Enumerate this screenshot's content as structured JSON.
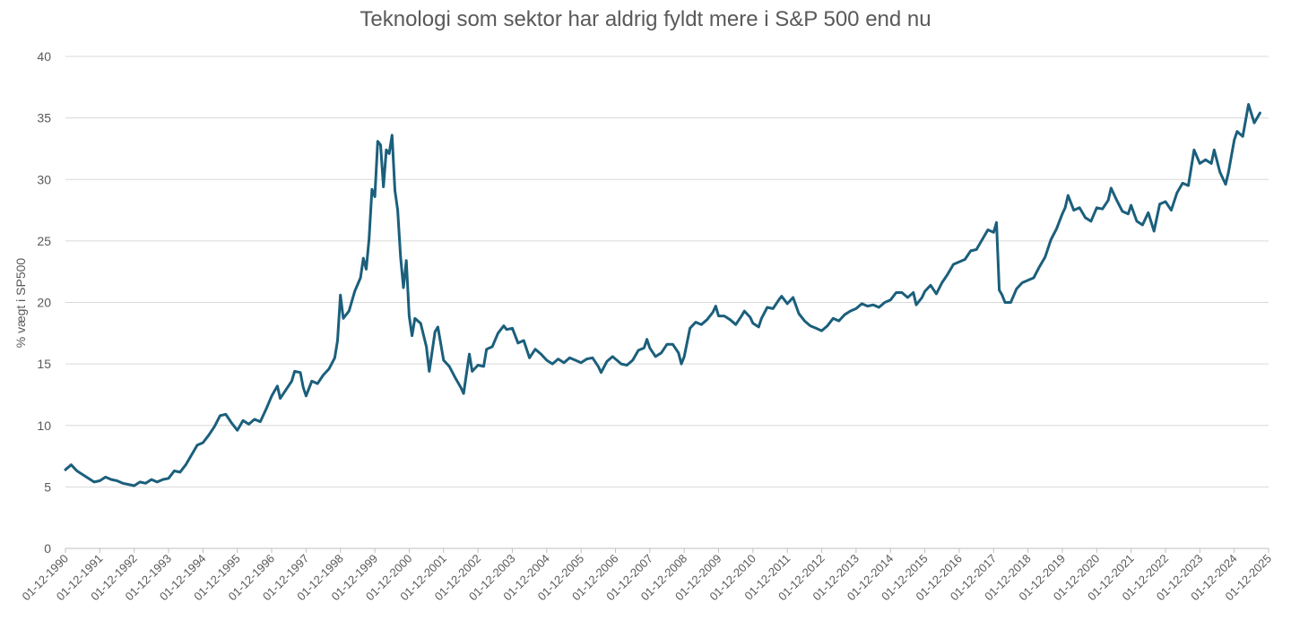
{
  "chart_data": {
    "type": "line",
    "title": "Teknologi som sektor har aldrig fyldt mere i S&P 500 end nu",
    "xlabel": "",
    "ylabel": "% vægt i SP500",
    "ylim": [
      0,
      40
    ],
    "yticks": [
      0,
      5,
      10,
      15,
      20,
      25,
      30,
      35,
      40
    ],
    "xlim": [
      "1990-12",
      "2025-12"
    ],
    "xtick_labels": [
      "01-12-1990",
      "01-12-1991",
      "01-12-1992",
      "01-12-1993",
      "01-12-1994",
      "01-12-1995",
      "01-12-1996",
      "01-12-1997",
      "01-12-1998",
      "01-12-1999",
      "01-12-2000",
      "01-12-2001",
      "01-12-2002",
      "01-12-2003",
      "01-12-2004",
      "01-12-2005",
      "01-12-2006",
      "01-12-2007",
      "01-12-2008",
      "01-12-2009",
      "01-12-2010",
      "01-12-2011",
      "01-12-2012",
      "01-12-2013",
      "01-12-2014",
      "01-12-2015",
      "01-12-2016",
      "01-12-2017",
      "01-12-2018",
      "01-12-2019",
      "01-12-2020",
      "01-12-2021",
      "01-12-2022",
      "01-12-2023",
      "01-12-2024",
      "01-12-2025"
    ],
    "grid": true,
    "legend": "none",
    "series": [
      {
        "color": "#1b5f7c",
        "points": [
          [
            "1990-12",
            6.4
          ],
          [
            "1991-02",
            6.8
          ],
          [
            "1991-04",
            6.3
          ],
          [
            "1991-06",
            6.0
          ],
          [
            "1991-08",
            5.7
          ],
          [
            "1991-10",
            5.4
          ],
          [
            "1991-12",
            5.5
          ],
          [
            "1992-02",
            5.8
          ],
          [
            "1992-04",
            5.6
          ],
          [
            "1992-06",
            5.5
          ],
          [
            "1992-08",
            5.3
          ],
          [
            "1992-10",
            5.2
          ],
          [
            "1992-12",
            5.1
          ],
          [
            "1993-02",
            5.4
          ],
          [
            "1993-04",
            5.3
          ],
          [
            "1993-06",
            5.6
          ],
          [
            "1993-08",
            5.4
          ],
          [
            "1993-10",
            5.6
          ],
          [
            "1993-12",
            5.7
          ],
          [
            "1994-02",
            6.3
          ],
          [
            "1994-04",
            6.2
          ],
          [
            "1994-06",
            6.8
          ],
          [
            "1994-08",
            7.6
          ],
          [
            "1994-10",
            8.4
          ],
          [
            "1994-12",
            8.6
          ],
          [
            "1995-02",
            9.2
          ],
          [
            "1995-04",
            9.9
          ],
          [
            "1995-06",
            10.8
          ],
          [
            "1995-08",
            10.9
          ],
          [
            "1995-10",
            10.2
          ],
          [
            "1995-12",
            9.6
          ],
          [
            "1996-02",
            10.4
          ],
          [
            "1996-04",
            10.1
          ],
          [
            "1996-06",
            10.5
          ],
          [
            "1996-08",
            10.3
          ],
          [
            "1996-10",
            11.3
          ],
          [
            "1996-12",
            12.4
          ],
          [
            "1997-02",
            13.2
          ],
          [
            "1997-03",
            12.2
          ],
          [
            "1997-05",
            12.9
          ],
          [
            "1997-07",
            13.6
          ],
          [
            "1997-08",
            14.4
          ],
          [
            "1997-10",
            14.3
          ],
          [
            "1997-11",
            13.1
          ],
          [
            "1997-12",
            12.4
          ],
          [
            "1998-02",
            13.6
          ],
          [
            "1998-04",
            13.4
          ],
          [
            "1998-06",
            14.1
          ],
          [
            "1998-08",
            14.6
          ],
          [
            "1998-10",
            15.5
          ],
          [
            "1998-11",
            16.9
          ],
          [
            "1998-12",
            20.6
          ],
          [
            "1999-01",
            18.7
          ],
          [
            "1999-03",
            19.3
          ],
          [
            "1999-05",
            20.9
          ],
          [
            "1999-07",
            22.0
          ],
          [
            "1999-08",
            23.6
          ],
          [
            "1999-09",
            22.7
          ],
          [
            "1999-10",
            25.2
          ],
          [
            "1999-11",
            29.2
          ],
          [
            "1999-12",
            28.6
          ],
          [
            "2000-01",
            33.1
          ],
          [
            "2000-02",
            32.8
          ],
          [
            "2000-03",
            29.4
          ],
          [
            "2000-04",
            32.4
          ],
          [
            "2000-05",
            32.1
          ],
          [
            "2000-06",
            33.6
          ],
          [
            "2000-07",
            29.1
          ],
          [
            "2000-08",
            27.5
          ],
          [
            "2000-09",
            23.7
          ],
          [
            "2000-10",
            21.2
          ],
          [
            "2000-11",
            23.4
          ],
          [
            "2000-12",
            18.9
          ],
          [
            "2001-01",
            17.3
          ],
          [
            "2001-02",
            18.7
          ],
          [
            "2001-04",
            18.3
          ],
          [
            "2001-06",
            16.4
          ],
          [
            "2001-07",
            14.4
          ],
          [
            "2001-09",
            17.6
          ],
          [
            "2001-10",
            18.0
          ],
          [
            "2001-12",
            15.3
          ],
          [
            "2002-02",
            14.8
          ],
          [
            "2002-04",
            13.9
          ],
          [
            "2002-06",
            13.1
          ],
          [
            "2002-07",
            12.6
          ],
          [
            "2002-09",
            15.8
          ],
          [
            "2002-10",
            14.4
          ],
          [
            "2002-12",
            14.9
          ],
          [
            "2003-02",
            14.8
          ],
          [
            "2003-03",
            16.2
          ],
          [
            "2003-05",
            16.4
          ],
          [
            "2003-07",
            17.5
          ],
          [
            "2003-09",
            18.1
          ],
          [
            "2003-10",
            17.8
          ],
          [
            "2003-12",
            17.9
          ],
          [
            "2004-02",
            16.7
          ],
          [
            "2004-04",
            16.9
          ],
          [
            "2004-06",
            15.5
          ],
          [
            "2004-08",
            16.2
          ],
          [
            "2004-10",
            15.8
          ],
          [
            "2004-12",
            15.3
          ],
          [
            "2005-02",
            15.0
          ],
          [
            "2005-04",
            15.4
          ],
          [
            "2005-06",
            15.1
          ],
          [
            "2005-08",
            15.5
          ],
          [
            "2005-10",
            15.3
          ],
          [
            "2005-12",
            15.1
          ],
          [
            "2006-02",
            15.4
          ],
          [
            "2006-04",
            15.5
          ],
          [
            "2006-06",
            14.8
          ],
          [
            "2006-07",
            14.3
          ],
          [
            "2006-09",
            15.2
          ],
          [
            "2006-11",
            15.6
          ],
          [
            "2006-12",
            15.4
          ],
          [
            "2007-02",
            15.0
          ],
          [
            "2007-04",
            14.9
          ],
          [
            "2007-06",
            15.3
          ],
          [
            "2007-08",
            16.1
          ],
          [
            "2007-10",
            16.3
          ],
          [
            "2007-11",
            17.0
          ],
          [
            "2007-12",
            16.3
          ],
          [
            "2008-02",
            15.6
          ],
          [
            "2008-04",
            15.9
          ],
          [
            "2008-06",
            16.6
          ],
          [
            "2008-08",
            16.6
          ],
          [
            "2008-10",
            15.9
          ],
          [
            "2008-11",
            15.0
          ],
          [
            "2008-12",
            15.6
          ],
          [
            "2009-02",
            17.9
          ],
          [
            "2009-04",
            18.4
          ],
          [
            "2009-06",
            18.2
          ],
          [
            "2009-08",
            18.6
          ],
          [
            "2009-10",
            19.2
          ],
          [
            "2009-11",
            19.7
          ],
          [
            "2009-12",
            18.9
          ],
          [
            "2010-02",
            18.9
          ],
          [
            "2010-04",
            18.6
          ],
          [
            "2010-06",
            18.2
          ],
          [
            "2010-08",
            18.9
          ],
          [
            "2010-09",
            19.3
          ],
          [
            "2010-11",
            18.8
          ],
          [
            "2010-12",
            18.3
          ],
          [
            "2011-02",
            18.0
          ],
          [
            "2011-03",
            18.7
          ],
          [
            "2011-05",
            19.6
          ],
          [
            "2011-07",
            19.5
          ],
          [
            "2011-09",
            20.2
          ],
          [
            "2011-10",
            20.5
          ],
          [
            "2011-12",
            19.9
          ],
          [
            "2012-02",
            20.4
          ],
          [
            "2012-04",
            19.1
          ],
          [
            "2012-06",
            18.5
          ],
          [
            "2012-08",
            18.1
          ],
          [
            "2012-10",
            17.9
          ],
          [
            "2012-12",
            17.7
          ],
          [
            "2013-02",
            18.1
          ],
          [
            "2013-04",
            18.7
          ],
          [
            "2013-06",
            18.5
          ],
          [
            "2013-08",
            19.0
          ],
          [
            "2013-10",
            19.3
          ],
          [
            "2013-12",
            19.5
          ],
          [
            "2014-02",
            19.9
          ],
          [
            "2014-04",
            19.7
          ],
          [
            "2014-06",
            19.8
          ],
          [
            "2014-08",
            19.6
          ],
          [
            "2014-10",
            20.0
          ],
          [
            "2014-12",
            20.2
          ],
          [
            "2015-02",
            20.8
          ],
          [
            "2015-04",
            20.8
          ],
          [
            "2015-06",
            20.4
          ],
          [
            "2015-08",
            20.8
          ],
          [
            "2015-09",
            19.8
          ],
          [
            "2015-11",
            20.4
          ],
          [
            "2015-12",
            20.9
          ],
          [
            "2016-02",
            21.4
          ],
          [
            "2016-04",
            20.7
          ],
          [
            "2016-06",
            21.6
          ],
          [
            "2016-08",
            22.3
          ],
          [
            "2016-10",
            23.1
          ],
          [
            "2016-12",
            23.3
          ],
          [
            "2017-02",
            23.5
          ],
          [
            "2017-04",
            24.2
          ],
          [
            "2017-06",
            24.3
          ],
          [
            "2017-08",
            25.1
          ],
          [
            "2017-10",
            25.9
          ],
          [
            "2017-12",
            25.7
          ],
          [
            "2018-01",
            26.5
          ],
          [
            "2018-02",
            21.0
          ],
          [
            "2018-03",
            20.6
          ],
          [
            "2018-04",
            20.0
          ],
          [
            "2018-06",
            20.0
          ],
          [
            "2018-08",
            21.1
          ],
          [
            "2018-10",
            21.6
          ],
          [
            "2018-12",
            21.8
          ],
          [
            "2019-02",
            22.0
          ],
          [
            "2019-04",
            22.9
          ],
          [
            "2019-06",
            23.7
          ],
          [
            "2019-08",
            25.1
          ],
          [
            "2019-10",
            26.0
          ],
          [
            "2019-12",
            27.2
          ],
          [
            "2020-01",
            27.7
          ],
          [
            "2020-02",
            28.7
          ],
          [
            "2020-04",
            27.5
          ],
          [
            "2020-06",
            27.7
          ],
          [
            "2020-08",
            26.9
          ],
          [
            "2020-10",
            26.6
          ],
          [
            "2020-12",
            27.7
          ],
          [
            "2021-02",
            27.6
          ],
          [
            "2021-04",
            28.3
          ],
          [
            "2021-05",
            29.3
          ],
          [
            "2021-07",
            28.3
          ],
          [
            "2021-09",
            27.4
          ],
          [
            "2021-11",
            27.2
          ],
          [
            "2021-12",
            27.9
          ],
          [
            "2022-02",
            26.6
          ],
          [
            "2022-04",
            26.3
          ],
          [
            "2022-06",
            27.3
          ],
          [
            "2022-08",
            25.8
          ],
          [
            "2022-10",
            28.0
          ],
          [
            "2022-12",
            28.2
          ],
          [
            "2023-02",
            27.5
          ],
          [
            "2023-04",
            28.9
          ],
          [
            "2023-06",
            29.7
          ],
          [
            "2023-08",
            29.5
          ],
          [
            "2023-10",
            32.4
          ],
          [
            "2023-12",
            31.3
          ],
          [
            "2024-02",
            31.6
          ],
          [
            "2024-04",
            31.3
          ],
          [
            "2024-05",
            32.4
          ],
          [
            "2024-07",
            30.6
          ],
          [
            "2024-09",
            29.6
          ],
          [
            "2024-10",
            30.6
          ],
          [
            "2024-12",
            33.2
          ],
          [
            "2025-01",
            33.9
          ],
          [
            "2025-03",
            33.5
          ],
          [
            "2025-05",
            36.1
          ],
          [
            "2025-07",
            34.6
          ],
          [
            "2025-09",
            35.4
          ]
        ]
      }
    ]
  }
}
